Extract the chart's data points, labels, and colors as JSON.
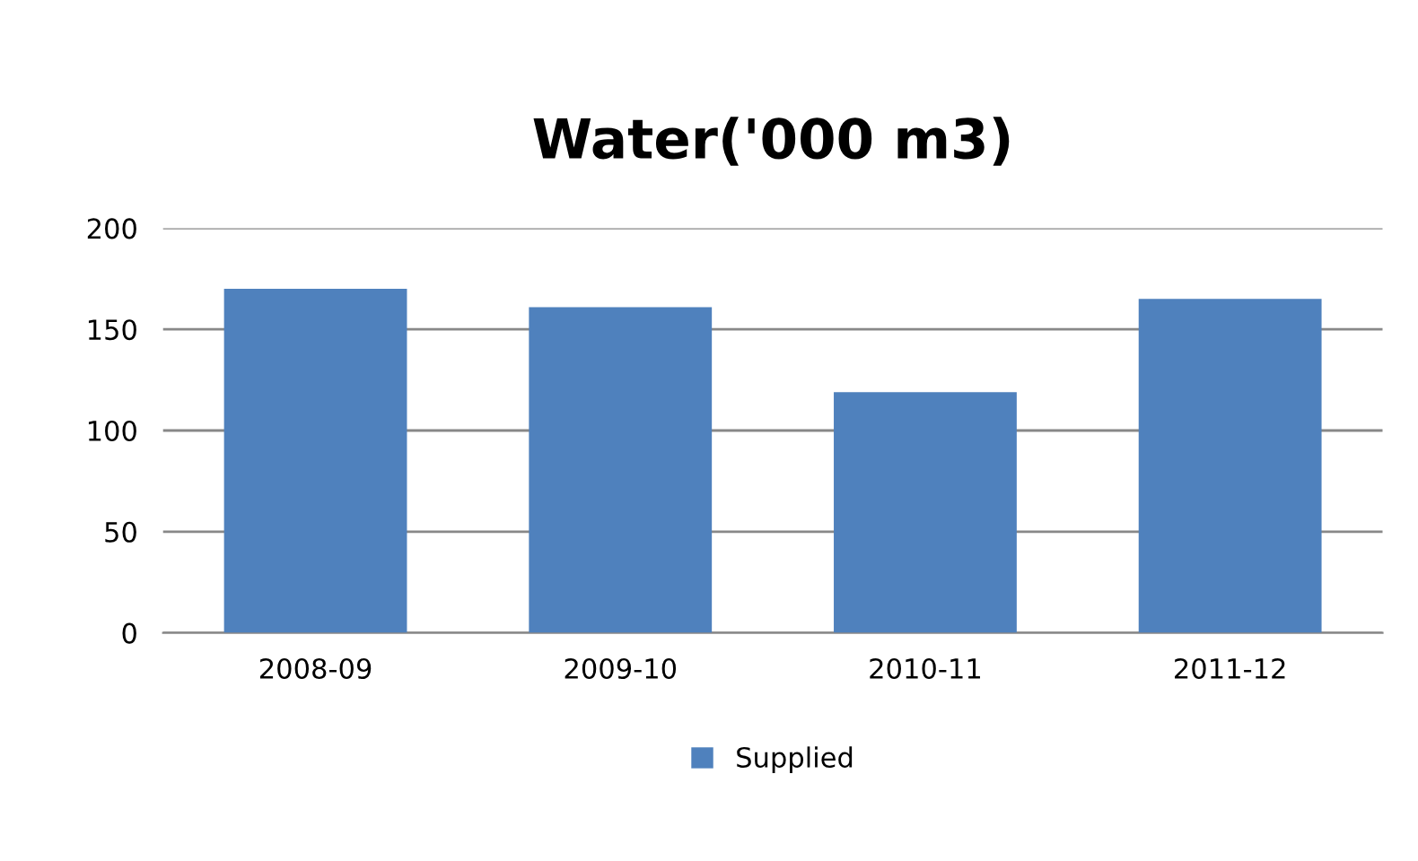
{
  "chart_data": {
    "type": "bar",
    "title": "Water('000 m3)",
    "categories": [
      "2008-09",
      "2009-10",
      "2010-11",
      "2011-12"
    ],
    "series": [
      {
        "name": "Supplied",
        "color": "#4f81bd",
        "values": [
          170,
          161,
          119,
          165
        ]
      }
    ],
    "ylim": [
      0,
      200
    ],
    "yticks": [
      0,
      50,
      100,
      150,
      200
    ],
    "grid": "y",
    "legend": "bottom"
  }
}
